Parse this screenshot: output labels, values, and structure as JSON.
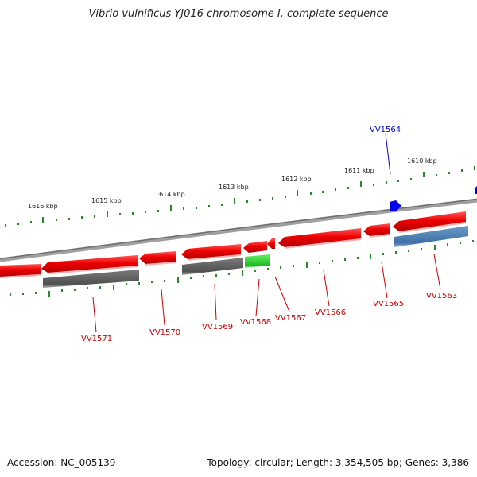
{
  "title": "Vibrio vulnificus YJ016 chromosome I, complete sequence",
  "footer": {
    "accession": "Accession: NC_005139",
    "summary": "Topology: circular; Length: 3,354,505 bp; Genes: 3,386"
  },
  "colors": {
    "backbone": "#808080",
    "gene_red": "#ee0000",
    "gene_gray": "#5a5a5a",
    "gene_green": "#33cc33",
    "gene_blue": "#4a7eb0",
    "marker_blue": "#0000ee",
    "label_red": "#cc0000",
    "label_blue": "#0000cc",
    "scale_green": "#228822"
  },
  "scale_labels": [
    "1616 kbp",
    "1615 kbp",
    "1614 kbp",
    "1613 kbp",
    "1612 kbp",
    "1611 kbp",
    "1610 kbp"
  ],
  "gene_labels": [
    {
      "name": "VV1571",
      "color": "red"
    },
    {
      "name": "VV1570",
      "color": "red"
    },
    {
      "name": "VV1569",
      "color": "red"
    },
    {
      "name": "VV1568",
      "color": "red"
    },
    {
      "name": "VV1567",
      "color": "red"
    },
    {
      "name": "VV1566",
      "color": "red"
    },
    {
      "name": "VV1565",
      "color": "red"
    },
    {
      "name": "VV1563",
      "color": "red"
    },
    {
      "name": "VV1564",
      "color": "blue"
    }
  ]
}
